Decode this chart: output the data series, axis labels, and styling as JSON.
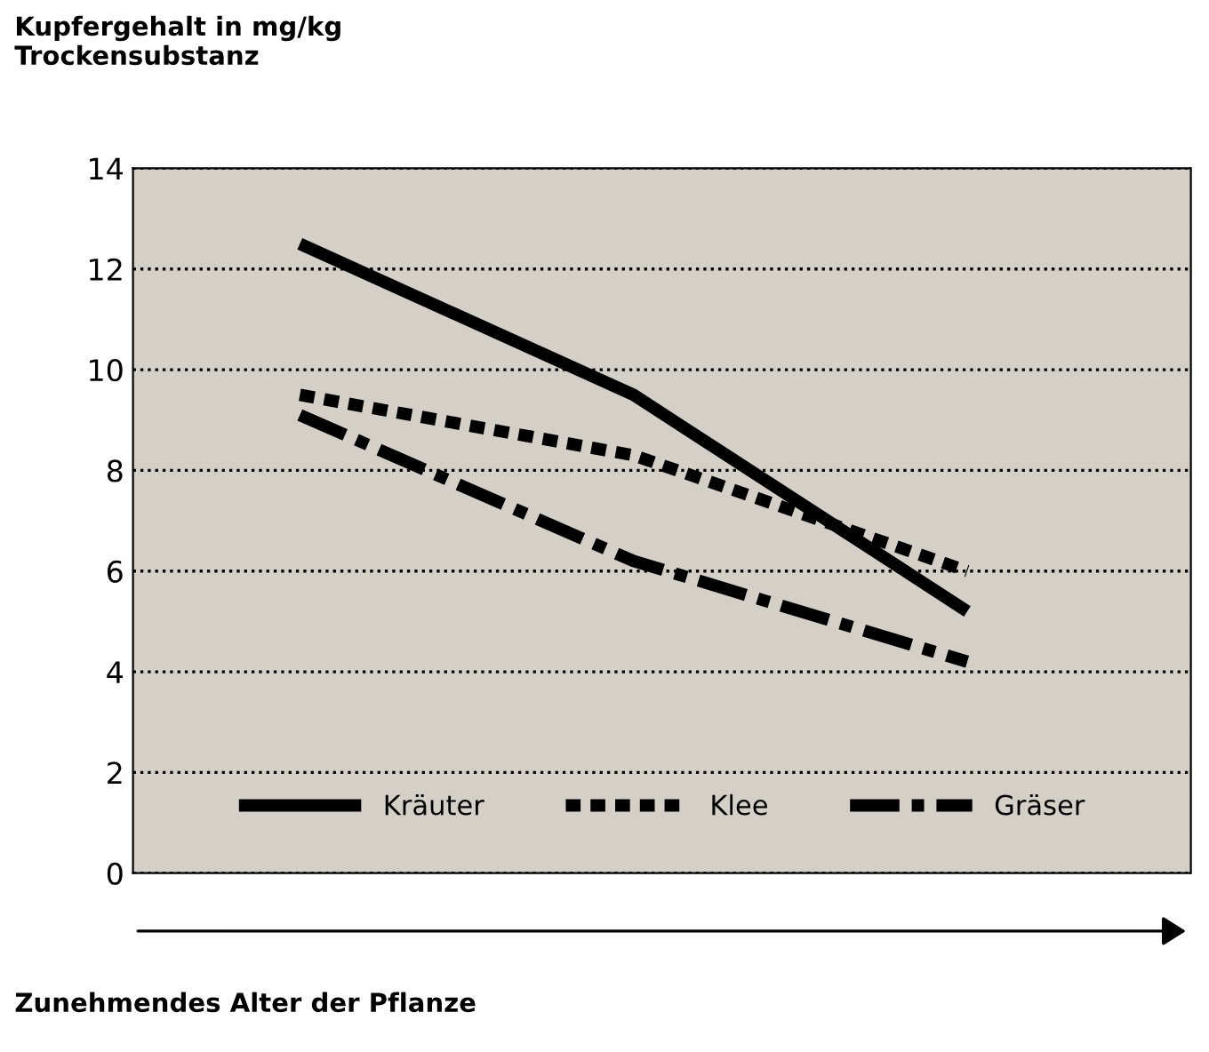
{
  "chart_data": {
    "type": "line",
    "ylabel": "Kupfergehalt in mg/kg\nTrockensubstanz",
    "xlabel": "Zunehmendes Alter der Pflanze",
    "categories": [
      null,
      null,
      null
    ],
    "series": [
      {
        "name": "Kräuter",
        "color": "#000000",
        "values": [
          12.5,
          9.5,
          5.2
        ],
        "line_style": "solid"
      },
      {
        "name": "Klee",
        "color": "#000000",
        "values": [
          9.5,
          8.3,
          6.0
        ],
        "line_style": "dotted"
      },
      {
        "name": "Gräser",
        "color": "#000000",
        "values": [
          9.1,
          6.2,
          4.2
        ],
        "line_style": "dashed"
      }
    ],
    "ylim": [
      0,
      14
    ],
    "yticks": [
      0,
      2,
      4,
      6,
      8,
      10,
      12,
      14
    ],
    "grid": "y",
    "legend": "bottom",
    "marker": "none"
  }
}
